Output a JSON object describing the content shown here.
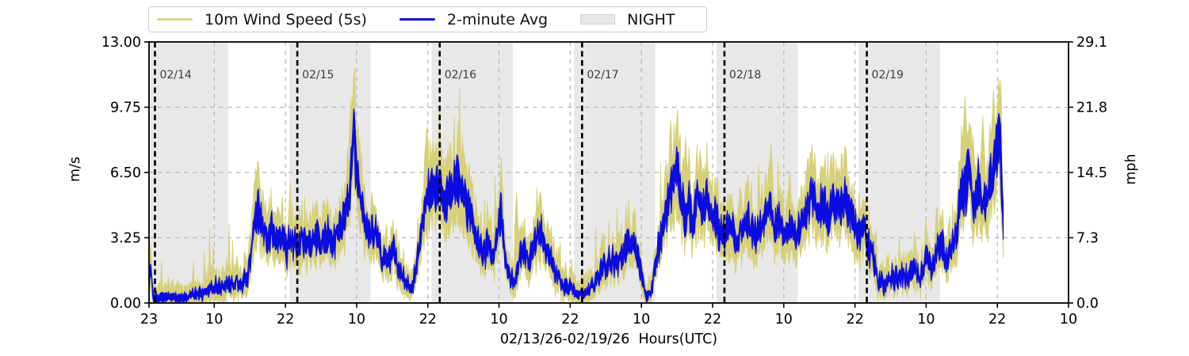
{
  "chart_data": {
    "type": "line",
    "title": "",
    "x_axis": {
      "label": "02/13/26-02/19/26  Hours(UTC)",
      "start": "02/13 23:00",
      "total_hours": 155,
      "tick_hours": [
        0,
        11,
        23,
        35,
        47,
        59,
        71,
        83,
        95,
        107,
        119,
        131,
        143,
        155
      ],
      "tick_labels": [
        "23",
        "10",
        "22",
        "10",
        "22",
        "10",
        "22",
        "10",
        "22",
        "10",
        "22",
        "10",
        "22",
        "10"
      ],
      "grid": true
    },
    "y_left": {
      "label": "m/s",
      "min": 0,
      "max": 13,
      "tick_values": [
        0.0,
        3.25,
        6.5,
        9.75,
        13.0
      ],
      "tick_labels": [
        "0.00",
        "3.25",
        "6.50",
        "9.75",
        "13.00"
      ],
      "grid_values": [
        3.25,
        6.5,
        9.75
      ]
    },
    "y_right": {
      "label": "mph",
      "tick_labels": [
        "0.0",
        "7.3",
        "14.5",
        "21.8",
        "29.1"
      ]
    },
    "night_bands_hours": [
      [
        0,
        13.35
      ],
      [
        23.65,
        37.35
      ],
      [
        47.65,
        61.35
      ],
      [
        71.65,
        85.35
      ],
      [
        95.65,
        109.35
      ],
      [
        119.65,
        133.35
      ]
    ],
    "date_markers": [
      {
        "hour": 1,
        "label": "02/14"
      },
      {
        "hour": 25,
        "label": "02/15"
      },
      {
        "hour": 49,
        "label": "02/16"
      },
      {
        "hour": 73,
        "label": "02/17"
      },
      {
        "hour": 97,
        "label": "02/18"
      },
      {
        "hour": 121,
        "label": "02/19"
      }
    ],
    "series": [
      {
        "name": "10m Wind Speed (5s)",
        "color": "#d6d07a",
        "style": "noisy-envelope",
        "gust_peaks": [
          [
            0.25,
            2.6
          ],
          [
            18.2,
            6.3
          ],
          [
            34.0,
            10.2
          ],
          [
            34.5,
            11.3
          ],
          [
            35.2,
            8.9
          ],
          [
            46.8,
            8.8
          ],
          [
            52.3,
            8.7
          ],
          [
            59.3,
            6.3
          ],
          [
            61.9,
            5.5
          ],
          [
            89.0,
            9.1
          ],
          [
            90.5,
            8.3
          ],
          [
            101.0,
            6.4
          ],
          [
            104.8,
            8.0
          ],
          [
            108.0,
            6.6
          ],
          [
            111.8,
            7.9
          ],
          [
            115.0,
            7.4
          ],
          [
            117.4,
            7.7
          ],
          [
            131.0,
            4.2
          ],
          [
            137.6,
            10.3
          ],
          [
            138.9,
            8.4
          ],
          [
            140.6,
            9.3
          ],
          [
            142.3,
            10.6
          ],
          [
            143.2,
            11.2
          ]
        ]
      },
      {
        "name": "2-minute Avg",
        "color": "#0c0ce0",
        "style": "mean-band",
        "end_hour": 144.1,
        "points": [
          [
            0,
            0.9
          ],
          [
            0.25,
            1.9
          ],
          [
            0.7,
            0.3
          ],
          [
            2,
            0.25
          ],
          [
            3.5,
            0.35
          ],
          [
            5,
            0.25
          ],
          [
            6.5,
            0.3
          ],
          [
            8,
            0.5
          ],
          [
            9.5,
            0.55
          ],
          [
            11,
            0.8
          ],
          [
            12.5,
            0.95
          ],
          [
            14,
            1.0
          ],
          [
            15.5,
            1.05
          ],
          [
            16.6,
            1.3
          ],
          [
            17.6,
            3.6
          ],
          [
            18.3,
            4.7
          ],
          [
            19,
            3.8
          ],
          [
            20,
            3.2
          ],
          [
            20.7,
            3.7
          ],
          [
            21.5,
            3.0
          ],
          [
            22.3,
            3.4
          ],
          [
            23.2,
            2.7
          ],
          [
            24,
            3.1
          ],
          [
            25,
            3.0
          ],
          [
            26,
            3.3
          ],
          [
            27,
            2.9
          ],
          [
            28,
            3.2
          ],
          [
            29,
            3.0
          ],
          [
            30,
            3.3
          ],
          [
            31,
            3.1
          ],
          [
            32,
            3.6
          ],
          [
            33,
            4.1
          ],
          [
            33.8,
            5.4
          ],
          [
            34.5,
            8.9
          ],
          [
            35,
            6.5
          ],
          [
            35.7,
            4.9
          ],
          [
            36.5,
            4.1
          ],
          [
            37.3,
            3.3
          ],
          [
            38.2,
            3.7
          ],
          [
            39.2,
            2.3
          ],
          [
            40.2,
            1.9
          ],
          [
            41.2,
            2.6
          ],
          [
            42.2,
            1.5
          ],
          [
            43.3,
            1.1
          ],
          [
            44.3,
            0.7
          ],
          [
            45.1,
            2.0
          ],
          [
            45.9,
            3.6
          ],
          [
            46.6,
            5.1
          ],
          [
            47.4,
            5.7
          ],
          [
            48.2,
            5.4
          ],
          [
            49,
            5.8
          ],
          [
            49.8,
            5.2
          ],
          [
            50.7,
            5.6
          ],
          [
            51.5,
            5.9
          ],
          [
            52.2,
            6.1
          ],
          [
            53,
            5.4
          ],
          [
            54,
            4.6
          ],
          [
            54.8,
            3.8
          ],
          [
            55.6,
            2.9
          ],
          [
            56.4,
            2.4
          ],
          [
            57.1,
            3.0
          ],
          [
            57.9,
            2.2
          ],
          [
            58.6,
            3.2
          ],
          [
            59.3,
            4.8
          ],
          [
            60,
            2.6
          ],
          [
            60.8,
            1.6
          ],
          [
            61.6,
            0.9
          ],
          [
            62.4,
            2.2
          ],
          [
            63.2,
            2.8
          ],
          [
            64.1,
            2.1
          ],
          [
            65.1,
            3.0
          ],
          [
            66,
            3.6
          ],
          [
            67,
            2.6
          ],
          [
            68,
            1.8
          ],
          [
            69,
            1.2
          ],
          [
            70,
            0.9
          ],
          [
            71,
            0.8
          ],
          [
            72,
            0.5
          ],
          [
            73,
            0.4
          ],
          [
            74,
            0.6
          ],
          [
            75,
            0.9
          ],
          [
            76,
            1.4
          ],
          [
            77,
            1.9
          ],
          [
            78,
            2.2
          ],
          [
            79,
            1.8
          ],
          [
            80,
            2.6
          ],
          [
            81,
            3.3
          ],
          [
            82,
            2.8
          ],
          [
            83,
            1.5
          ],
          [
            83.8,
            0.3
          ],
          [
            84.6,
            0.5
          ],
          [
            85.3,
            1.8
          ],
          [
            86.2,
            3.2
          ],
          [
            87.1,
            4.4
          ],
          [
            88,
            5.7
          ],
          [
            88.9,
            6.9
          ],
          [
            89.6,
            5.6
          ],
          [
            90.3,
            4.3
          ],
          [
            91,
            5.2
          ],
          [
            91.7,
            3.4
          ],
          [
            92.4,
            5.8
          ],
          [
            93.2,
            4.6
          ],
          [
            94.1,
            5.2
          ],
          [
            95,
            4.4
          ],
          [
            96,
            3.8
          ],
          [
            97,
            3.4
          ],
          [
            98,
            3.9
          ],
          [
            99,
            3.2
          ],
          [
            100,
            3.6
          ],
          [
            101,
            4.1
          ],
          [
            102,
            3.3
          ],
          [
            103,
            3.8
          ],
          [
            104,
            4.3
          ],
          [
            104.7,
            5.0
          ],
          [
            105.4,
            3.6
          ],
          [
            106.2,
            4.2
          ],
          [
            107,
            3.4
          ],
          [
            108,
            3.9
          ],
          [
            109,
            3.3
          ],
          [
            110,
            4.0
          ],
          [
            111,
            4.6
          ],
          [
            111.8,
            5.7
          ],
          [
            112.6,
            4.4
          ],
          [
            113.5,
            4.9
          ],
          [
            114.5,
            4.2
          ],
          [
            115.5,
            5.0
          ],
          [
            116.5,
            4.4
          ],
          [
            117.3,
            5.5
          ],
          [
            118.1,
            4.6
          ],
          [
            119,
            3.9
          ],
          [
            119.8,
            3.3
          ],
          [
            120.5,
            3.9
          ],
          [
            121.3,
            2.9
          ],
          [
            122.1,
            2.1
          ],
          [
            123,
            1.1
          ],
          [
            124,
            1.0
          ],
          [
            125,
            1.3
          ],
          [
            126,
            1.2
          ],
          [
            127,
            1.5
          ],
          [
            128,
            1.3
          ],
          [
            129,
            1.7
          ],
          [
            130,
            1.4
          ],
          [
            131,
            2.2
          ],
          [
            132,
            1.6
          ],
          [
            132.8,
            2.6
          ],
          [
            133.5,
            3.3
          ],
          [
            134.3,
            2.0
          ],
          [
            135.1,
            2.9
          ],
          [
            136,
            3.3
          ],
          [
            136.8,
            5.2
          ],
          [
            137.5,
            5.8
          ],
          [
            138.2,
            6.9
          ],
          [
            139,
            4.8
          ],
          [
            139.8,
            5.9
          ],
          [
            140.6,
            4.6
          ],
          [
            141.3,
            5.5
          ],
          [
            142.1,
            6.3
          ],
          [
            142.8,
            7.6
          ],
          [
            143.4,
            8.8
          ],
          [
            143.8,
            5.5
          ],
          [
            144.1,
            3.0
          ]
        ]
      }
    ],
    "legend": {
      "items": [
        {
          "label": "10m Wind Speed (5s)",
          "swatch": "line",
          "color": "#d6d07a"
        },
        {
          "label": "2-minute Avg",
          "swatch": "line",
          "color": "#0c0ce0"
        },
        {
          "label": "NIGHT",
          "swatch": "patch",
          "color": "#e8e8e8"
        }
      ]
    },
    "colors": {
      "wind_5s": "#d6d07a",
      "wind_2min": "#0c0ce0",
      "night_fill": "#e8e8e8",
      "gridline": "#b4b4b4",
      "date_label": "#3d3d3d",
      "spine": "#000000"
    }
  }
}
